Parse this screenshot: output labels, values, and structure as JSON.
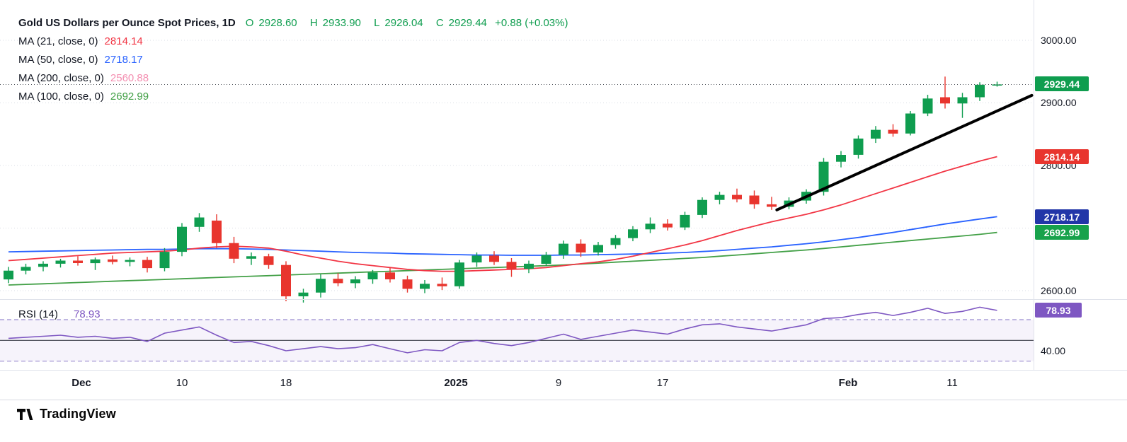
{
  "legend": {
    "title": "Gold US Dollars per Ounce Spot Prices, 1D",
    "ohlc": {
      "open_label": "O",
      "open": "2928.60",
      "high_label": "H",
      "high": "2933.90",
      "low_label": "L",
      "low": "2926.04",
      "close_label": "C",
      "close": "2929.44",
      "change": "+0.88 (+0.03%)"
    },
    "ma_rows": [
      {
        "label": "MA (21, close, 0)",
        "value": "2814.14",
        "color": "#f23645"
      },
      {
        "label": "MA (50, close, 0)",
        "value": "2718.17",
        "color": "#2962ff"
      },
      {
        "label": "MA (200, close, 0)",
        "value": "2560.88",
        "color": "#f48fb1"
      },
      {
        "label": "MA (100, close, 0)",
        "value": "2692.99",
        "color": "#43a047"
      }
    ],
    "rsi": {
      "label": "RSI (14)",
      "value": "78.93",
      "color": "#7e57c2"
    }
  },
  "price_axis": {
    "labels": [
      {
        "text": "3000.00"
      },
      {
        "text": "2900.00"
      },
      {
        "text": "2800.00"
      },
      {
        "text": "2600.00"
      },
      {
        "text": "40.00"
      }
    ],
    "badges": [
      {
        "name": "last-price",
        "text": "2929.44",
        "color": "#0f9d4f"
      },
      {
        "name": "ma21-price",
        "text": "2814.14",
        "color": "#e8352e"
      },
      {
        "name": "ma50-price",
        "text": "2718.17",
        "color": "#2236a8"
      },
      {
        "name": "ma100-price",
        "text": "2692.99",
        "color": "#17a24b"
      },
      {
        "name": "rsi-value",
        "text": "78.93",
        "color": "#7e57c2"
      }
    ]
  },
  "time_axis": {
    "labels": [
      {
        "text": "Dec"
      },
      {
        "text": "10"
      },
      {
        "text": "18"
      },
      {
        "text": "2025"
      },
      {
        "text": "9"
      },
      {
        "text": "17"
      },
      {
        "text": "Feb"
      },
      {
        "text": "11"
      }
    ]
  },
  "footer": {
    "brand": "TradingView"
  },
  "chart_data": {
    "type": "candlestick",
    "title": "Gold US Dollars per Ounce Spot Prices",
    "interval": "1D",
    "current_bar": {
      "open": 2928.6,
      "high": 2933.9,
      "low": 2926.04,
      "close": 2929.44,
      "change": 0.88,
      "change_pct": 0.03
    },
    "price_gridlines": [
      3000,
      2900,
      2800,
      2700,
      2600
    ],
    "colors": {
      "up": "#0f9d4f",
      "down": "#e8352e"
    },
    "candles": [
      [
        2618,
        2638,
        2612,
        2632
      ],
      [
        2632,
        2643,
        2626,
        2638
      ],
      [
        2638,
        2647,
        2631,
        2643
      ],
      [
        2643,
        2651,
        2637,
        2648
      ],
      [
        2648,
        2655,
        2640,
        2644
      ],
      [
        2644,
        2653,
        2633,
        2650
      ],
      [
        2650,
        2656,
        2642,
        2646
      ],
      [
        2646,
        2653,
        2639,
        2649
      ],
      [
        2649,
        2654,
        2629,
        2636
      ],
      [
        2636,
        2668,
        2631,
        2662
      ],
      [
        2662,
        2708,
        2655,
        2702
      ],
      [
        2702,
        2724,
        2694,
        2717
      ],
      [
        2712,
        2722,
        2668,
        2676
      ],
      [
        2676,
        2686,
        2644,
        2651
      ],
      [
        2651,
        2661,
        2641,
        2655
      ],
      [
        2655,
        2659,
        2635,
        2641
      ],
      [
        2641,
        2647,
        2583,
        2591
      ],
      [
        2591,
        2603,
        2581,
        2597
      ],
      [
        2597,
        2626,
        2589,
        2619
      ],
      [
        2619,
        2628,
        2607,
        2612
      ],
      [
        2612,
        2623,
        2604,
        2618
      ],
      [
        2618,
        2633,
        2611,
        2629
      ],
      [
        2629,
        2637,
        2613,
        2618
      ],
      [
        2618,
        2624,
        2597,
        2603
      ],
      [
        2603,
        2617,
        2596,
        2611
      ],
      [
        2611,
        2621,
        2601,
        2607
      ],
      [
        2607,
        2649,
        2603,
        2645
      ],
      [
        2645,
        2661,
        2638,
        2656
      ],
      [
        2656,
        2663,
        2641,
        2646
      ],
      [
        2646,
        2652,
        2622,
        2635
      ],
      [
        2635,
        2648,
        2628,
        2643
      ],
      [
        2643,
        2662,
        2639,
        2657
      ],
      [
        2657,
        2680,
        2651,
        2675
      ],
      [
        2675,
        2682,
        2654,
        2661
      ],
      [
        2661,
        2678,
        2656,
        2673
      ],
      [
        2673,
        2689,
        2667,
        2684
      ],
      [
        2684,
        2703,
        2679,
        2698
      ],
      [
        2698,
        2717,
        2692,
        2707
      ],
      [
        2707,
        2714,
        2696,
        2701
      ],
      [
        2701,
        2726,
        2697,
        2721
      ],
      [
        2721,
        2749,
        2716,
        2745
      ],
      [
        2745,
        2758,
        2738,
        2753
      ],
      [
        2753,
        2763,
        2741,
        2746
      ],
      [
        2752,
        2760,
        2731,
        2738
      ],
      [
        2738,
        2750,
        2729,
        2734
      ],
      [
        2734,
        2749,
        2730,
        2744
      ],
      [
        2744,
        2762,
        2739,
        2758
      ],
      [
        2758,
        2812,
        2752,
        2806
      ],
      [
        2806,
        2823,
        2797,
        2817
      ],
      [
        2817,
        2848,
        2811,
        2843
      ],
      [
        2843,
        2863,
        2836,
        2857
      ],
      [
        2857,
        2866,
        2846,
        2851
      ],
      [
        2851,
        2887,
        2848,
        2883
      ],
      [
        2883,
        2913,
        2879,
        2907
      ],
      [
        2909,
        2942,
        2891,
        2899
      ],
      [
        2899,
        2916,
        2876,
        2909
      ],
      [
        2909,
        2933,
        2903,
        2929
      ],
      [
        2928.6,
        2933.9,
        2926.04,
        2929.44
      ]
    ],
    "series": [
      {
        "name": "MA (21, close, 0)",
        "last": 2814.14,
        "color": "#f23645",
        "values": [
          2648,
          2650,
          2652,
          2654,
          2656,
          2658,
          2660,
          2661,
          2662,
          2663,
          2665,
          2668,
          2670,
          2671,
          2670,
          2668,
          2663,
          2657,
          2652,
          2647,
          2643,
          2640,
          2637,
          2634,
          2632,
          2631,
          2631,
          2632,
          2633,
          2634,
          2635,
          2637,
          2640,
          2643,
          2646,
          2650,
          2655,
          2661,
          2667,
          2673,
          2680,
          2688,
          2696,
          2703,
          2710,
          2716,
          2722,
          2729,
          2737,
          2746,
          2755,
          2764,
          2773,
          2782,
          2791,
          2799,
          2807,
          2814.14
        ]
      },
      {
        "name": "MA (50, close, 0)",
        "last": 2718.17,
        "color": "#2962ff",
        "values": [
          2662,
          2662.5,
          2663,
          2663.5,
          2664,
          2664.5,
          2665,
          2665.5,
          2666,
          2666,
          2666.5,
          2667,
          2667,
          2667,
          2666.5,
          2666,
          2665,
          2664,
          2663,
          2662,
          2661,
          2660.5,
          2660,
          2659,
          2658.5,
          2658,
          2657.5,
          2657,
          2657,
          2656.5,
          2656.5,
          2656.5,
          2657,
          2657,
          2657.5,
          2658,
          2658.5,
          2659,
          2660,
          2661,
          2662.5,
          2664,
          2666,
          2668,
          2670,
          2672.5,
          2675,
          2678,
          2681.5,
          2685,
          2689,
          2693,
          2697.5,
          2702,
          2706.5,
          2710.5,
          2714.5,
          2718.17
        ]
      },
      {
        "name": "MA (100, close, 0)",
        "last": 2692.99,
        "color": "#43a047",
        "values": [
          2609,
          2610,
          2611,
          2612,
          2613,
          2614,
          2615,
          2616,
          2617,
          2618,
          2619,
          2620,
          2621,
          2622,
          2623,
          2624,
          2625,
          2626,
          2627,
          2628,
          2629,
          2630,
          2631,
          2632,
          2633,
          2634,
          2635,
          2636,
          2637,
          2638,
          2639,
          2640,
          2641,
          2642.5,
          2644,
          2645.5,
          2647,
          2648.5,
          2650,
          2651.5,
          2653,
          2655,
          2657,
          2659,
          2661,
          2663,
          2665,
          2667.5,
          2670,
          2672.5,
          2675,
          2677.5,
          2680,
          2682.5,
          2685,
          2687.5,
          2690,
          2692.99
        ]
      },
      {
        "name": "MA (200, close, 0)",
        "last": 2560.88,
        "color": "#f48fb1",
        "visible": false,
        "values": []
      }
    ],
    "rsi": {
      "name": "RSI (14)",
      "period": 14,
      "last": 78.93,
      "color": "#7e57c2",
      "upper_band": 70,
      "lower_band": 30,
      "mid_line": 50,
      "values": [
        52,
        53,
        54,
        55,
        53,
        54,
        52,
        53,
        49,
        57,
        60,
        63,
        55,
        48,
        49,
        45,
        40,
        42,
        44,
        42,
        43,
        46,
        42,
        38,
        41,
        40,
        48,
        50,
        47,
        45,
        48,
        52,
        56,
        51,
        54,
        57,
        60,
        58,
        56,
        61,
        65,
        66,
        63,
        61,
        59,
        62,
        65,
        71,
        72,
        75,
        77,
        74,
        77,
        81,
        76,
        78,
        82,
        78.93
      ]
    },
    "trend_line": {
      "from": {
        "index": 44.3,
        "price": 2729
      },
      "to": {
        "index": 59,
        "price": 2912
      },
      "color": "#000000",
      "width": 4
    },
    "price_line": {
      "price": 2929.44,
      "style": "dotted",
      "color": "#50545c"
    }
  }
}
